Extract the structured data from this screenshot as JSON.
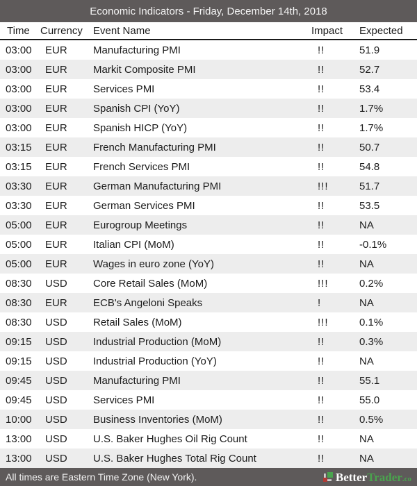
{
  "header": {
    "title": "Economic Indicators - Friday, December 14th, 2018"
  },
  "columns": {
    "time": "Time",
    "currency": "Currency",
    "event": "Event Name",
    "impact": "Impact",
    "expected": "Expected"
  },
  "rows": [
    {
      "time": "03:00",
      "currency": "EUR",
      "event": "Manufacturing PMI",
      "impact": "!!",
      "expected": "51.9"
    },
    {
      "time": "03:00",
      "currency": "EUR",
      "event": "Markit Composite PMI",
      "impact": "!!",
      "expected": "52.7"
    },
    {
      "time": "03:00",
      "currency": "EUR",
      "event": "Services PMI",
      "impact": "!!",
      "expected": "53.4"
    },
    {
      "time": "03:00",
      "currency": "EUR",
      "event": "Spanish CPI (YoY)",
      "impact": "!!",
      "expected": "1.7%"
    },
    {
      "time": "03:00",
      "currency": "EUR",
      "event": "Spanish HICP (YoY)",
      "impact": "!!",
      "expected": "1.7%"
    },
    {
      "time": "03:15",
      "currency": "EUR",
      "event": "French Manufacturing PMI",
      "impact": "!!",
      "expected": "50.7"
    },
    {
      "time": "03:15",
      "currency": "EUR",
      "event": "French Services PMI",
      "impact": "!!",
      "expected": "54.8"
    },
    {
      "time": "03:30",
      "currency": "EUR",
      "event": "German Manufacturing PMI",
      "impact": "!!!",
      "expected": "51.7"
    },
    {
      "time": "03:30",
      "currency": "EUR",
      "event": "German Services PMI",
      "impact": "!!",
      "expected": "53.5"
    },
    {
      "time": "05:00",
      "currency": "EUR",
      "event": "Eurogroup Meetings",
      "impact": "!!",
      "expected": "NA"
    },
    {
      "time": "05:00",
      "currency": "EUR",
      "event": "Italian CPI (MoM)",
      "impact": "!!",
      "expected": "-0.1%"
    },
    {
      "time": "05:00",
      "currency": "EUR",
      "event": "Wages in euro zone (YoY)",
      "impact": "!!",
      "expected": "NA"
    },
    {
      "time": "08:30",
      "currency": "USD",
      "event": "Core Retail Sales (MoM)",
      "impact": "!!!",
      "expected": "0.2%"
    },
    {
      "time": "08:30",
      "currency": "EUR",
      "event": "ECB's Angeloni Speaks",
      "impact": "!",
      "expected": "NA"
    },
    {
      "time": "08:30",
      "currency": "USD",
      "event": "Retail Sales (MoM)",
      "impact": "!!!",
      "expected": "0.1%"
    },
    {
      "time": "09:15",
      "currency": "USD",
      "event": "Industrial Production (MoM)",
      "impact": "!!",
      "expected": "0.3%"
    },
    {
      "time": "09:15",
      "currency": "USD",
      "event": "Industrial Production (YoY)",
      "impact": "!!",
      "expected": "NA"
    },
    {
      "time": "09:45",
      "currency": "USD",
      "event": "Manufacturing PMI",
      "impact": "!!",
      "expected": "55.1"
    },
    {
      "time": "09:45",
      "currency": "USD",
      "event": "Services PMI",
      "impact": "!!",
      "expected": "55.0"
    },
    {
      "time": "10:00",
      "currency": "USD",
      "event": "Business Inventories (MoM)",
      "impact": "!!",
      "expected": "0.5%"
    },
    {
      "time": "13:00",
      "currency": "USD",
      "event": "U.S. Baker Hughes Oil Rig Count",
      "impact": "!!",
      "expected": "NA"
    },
    {
      "time": "13:00",
      "currency": "USD",
      "event": "U.S. Baker Hughes Total Rig Count",
      "impact": "!!",
      "expected": "NA"
    }
  ],
  "footer": {
    "note": "All times are Eastern Time Zone (New York).",
    "brand_better": "Better",
    "brand_trader": "Trader",
    "brand_suffix": ".co"
  },
  "colors": {
    "bar_background": "#5e5a5a",
    "alt_row": "#ededed",
    "brand_green": "#4aa44e",
    "brand_red": "#b03a34"
  }
}
